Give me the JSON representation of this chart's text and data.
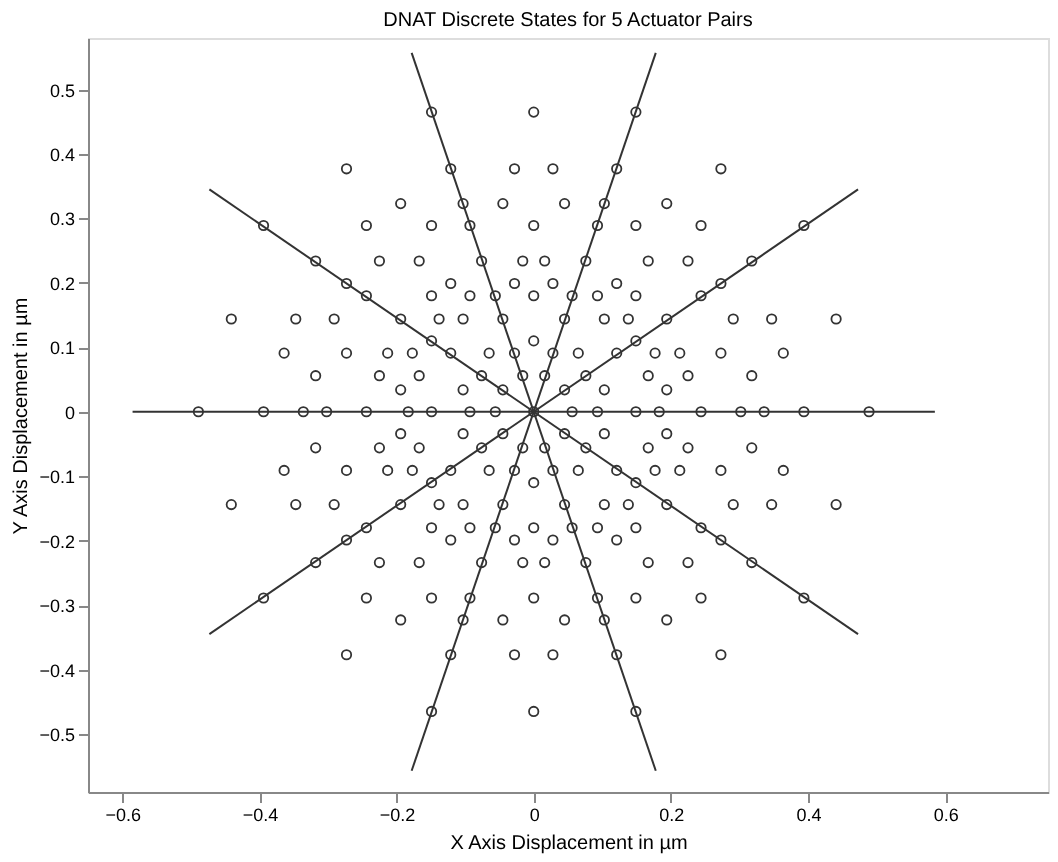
{
  "chart_data": {
    "type": "scatter",
    "title": "DNAT Discrete States for 5 Actuator Pairs",
    "xlabel": "X Axis Displacement in µm",
    "ylabel": "Y Axis Displacement in µm",
    "xlim": [
      -0.65,
      0.75
    ],
    "ylim": [
      -0.59,
      0.58
    ],
    "xticks": [
      -0.6,
      -0.4,
      -0.2,
      0,
      0.2,
      0.4,
      0.6
    ],
    "yticks": [
      -0.5,
      -0.4,
      -0.3,
      -0.2,
      -0.1,
      0,
      0.1,
      0.2,
      0.3,
      0.4,
      0.5
    ],
    "grid": false,
    "marker": "circle",
    "series": [
      {
        "type": "line",
        "marker": "none",
        "line_style": "solid",
        "color": "#333333",
        "x": [
          -0.585,
          0.585
        ],
        "values": [
          0,
          0
        ]
      },
      {
        "type": "line",
        "marker": "none",
        "line_style": "solid",
        "color": "#333333",
        "x": [
          -0.473,
          0.473
        ],
        "values": [
          -0.345,
          0.345
        ]
      },
      {
        "type": "line",
        "marker": "none",
        "line_style": "solid",
        "color": "#333333",
        "x": [
          -0.178,
          0.178
        ],
        "values": [
          -0.557,
          0.557
        ]
      },
      {
        "type": "line",
        "marker": "none",
        "line_style": "solid",
        "color": "#333333",
        "x": [
          -0.178,
          0.178
        ],
        "values": [
          0.557,
          -0.557
        ]
      },
      {
        "type": "line",
        "marker": "none",
        "line_style": "solid",
        "color": "#333333",
        "x": [
          -0.473,
          0.473
        ],
        "values": [
          0.345,
          -0.345
        ]
      },
      {
        "color": "#333333",
        "x": [
          0.149,
          0.028,
          0.121,
          0.273,
          0.045,
          0.103,
          0.194,
          0.093,
          0.149,
          0.244,
          0.394,
          0.016,
          0.076,
          0.167,
          0.225,
          0.318,
          0.028,
          0.121,
          0.273,
          0.056,
          0.093,
          0.149,
          0.244,
          0.045,
          0.103,
          0.138,
          0.194,
          0.291,
          0.347,
          0.441,
          0.149,
          0.028,
          0.065,
          0.121,
          0.177,
          0.213,
          0.273,
          0.364,
          0.016,
          0.076,
          0.167,
          0.225,
          0.318,
          0.045,
          0.103,
          0.194,
          -0.149,
          -0.028,
          -0.121,
          -0.273,
          -0.045,
          -0.103,
          -0.194,
          -0.093,
          -0.149,
          -0.244,
          -0.394,
          -0.016,
          -0.076,
          -0.167,
          -0.225,
          -0.318,
          -0.028,
          -0.121,
          -0.273,
          -0.056,
          -0.093,
          -0.149,
          -0.244,
          -0.045,
          -0.103,
          -0.138,
          -0.194,
          -0.291,
          -0.347,
          -0.441,
          -0.149,
          -0.028,
          -0.065,
          -0.121,
          -0.177,
          -0.213,
          -0.273,
          -0.364,
          -0.016,
          -0.076,
          -0.167,
          -0.225,
          -0.318,
          -0.045,
          -0.103,
          -0.194,
          -0.149,
          -0.028,
          -0.121,
          -0.273,
          -0.045,
          -0.103,
          -0.194,
          -0.093,
          -0.149,
          -0.244,
          -0.394,
          -0.016,
          -0.076,
          -0.167,
          -0.225,
          -0.318,
          -0.028,
          -0.121,
          -0.273,
          -0.056,
          -0.093,
          -0.149,
          -0.244,
          -0.045,
          -0.103,
          -0.138,
          -0.194,
          -0.291,
          -0.347,
          -0.441,
          -0.149,
          -0.028,
          -0.065,
          -0.121,
          -0.177,
          -0.213,
          -0.273,
          -0.364,
          -0.016,
          -0.076,
          -0.167,
          -0.225,
          -0.318,
          -0.045,
          -0.103,
          -0.194,
          0.149,
          0.028,
          0.121,
          0.273,
          0.045,
          0.103,
          0.194,
          0.093,
          0.149,
          0.244,
          0.394,
          0.016,
          0.076,
          0.167,
          0.225,
          0.318,
          0.028,
          0.121,
          0.273,
          0.056,
          0.093,
          0.149,
          0.244,
          0.045,
          0.103,
          0.138,
          0.194,
          0.291,
          0.347,
          0.441,
          0.149,
          0.028,
          0.065,
          0.121,
          0.177,
          0.213,
          0.273,
          0.364,
          0.016,
          0.076,
          0.167,
          0.225,
          0.318,
          0.045,
          0.103,
          0.194,
          0.056,
          0.093,
          0.149,
          0.183,
          0.244,
          0.302,
          0.336,
          0.394,
          0.489,
          -0.056,
          -0.093,
          -0.149,
          -0.183,
          -0.244,
          -0.302,
          -0.336,
          -0.394,
          -0.489,
          0,
          0,
          0,
          0,
          0,
          0,
          0,
          0,
          0
        ],
        "values": [
          0.465,
          0.377,
          0.377,
          0.377,
          0.323,
          0.323,
          0.323,
          0.289,
          0.289,
          0.289,
          0.289,
          0.234,
          0.234,
          0.234,
          0.234,
          0.234,
          0.199,
          0.199,
          0.199,
          0.18,
          0.18,
          0.18,
          0.18,
          0.144,
          0.144,
          0.144,
          0.144,
          0.144,
          0.144,
          0.144,
          0.11,
          0.091,
          0.091,
          0.091,
          0.091,
          0.091,
          0.091,
          0.091,
          0.056,
          0.056,
          0.056,
          0.056,
          0.056,
          0.034,
          0.034,
          0.034,
          0.465,
          0.377,
          0.377,
          0.377,
          0.323,
          0.323,
          0.323,
          0.289,
          0.289,
          0.289,
          0.289,
          0.234,
          0.234,
          0.234,
          0.234,
          0.234,
          0.199,
          0.199,
          0.199,
          0.18,
          0.18,
          0.18,
          0.18,
          0.144,
          0.144,
          0.144,
          0.144,
          0.144,
          0.144,
          0.144,
          0.11,
          0.091,
          0.091,
          0.091,
          0.091,
          0.091,
          0.091,
          0.091,
          0.056,
          0.056,
          0.056,
          0.056,
          0.056,
          0.034,
          0.034,
          0.034,
          -0.465,
          -0.377,
          -0.377,
          -0.377,
          -0.323,
          -0.323,
          -0.323,
          -0.289,
          -0.289,
          -0.289,
          -0.289,
          -0.234,
          -0.234,
          -0.234,
          -0.234,
          -0.234,
          -0.199,
          -0.199,
          -0.199,
          -0.18,
          -0.18,
          -0.18,
          -0.18,
          -0.144,
          -0.144,
          -0.144,
          -0.144,
          -0.144,
          -0.144,
          -0.144,
          -0.11,
          -0.091,
          -0.091,
          -0.091,
          -0.091,
          -0.091,
          -0.091,
          -0.091,
          -0.056,
          -0.056,
          -0.056,
          -0.056,
          -0.056,
          -0.034,
          -0.034,
          -0.034,
          -0.465,
          -0.377,
          -0.377,
          -0.377,
          -0.323,
          -0.323,
          -0.323,
          -0.289,
          -0.289,
          -0.289,
          -0.289,
          -0.234,
          -0.234,
          -0.234,
          -0.234,
          -0.234,
          -0.199,
          -0.199,
          -0.199,
          -0.18,
          -0.18,
          -0.18,
          -0.18,
          -0.144,
          -0.144,
          -0.144,
          -0.144,
          -0.144,
          -0.144,
          -0.144,
          -0.11,
          -0.091,
          -0.091,
          -0.091,
          -0.091,
          -0.091,
          -0.091,
          -0.091,
          -0.056,
          -0.056,
          -0.056,
          -0.056,
          -0.056,
          -0.034,
          -0.034,
          -0.034,
          0,
          0,
          0,
          0,
          0,
          0,
          0,
          0,
          0,
          0,
          0,
          0,
          0,
          0,
          0,
          0,
          0,
          0,
          0.465,
          0.289,
          0.18,
          0.11,
          -0.465,
          -0.289,
          -0.18,
          -0.11,
          0
        ]
      }
    ]
  }
}
